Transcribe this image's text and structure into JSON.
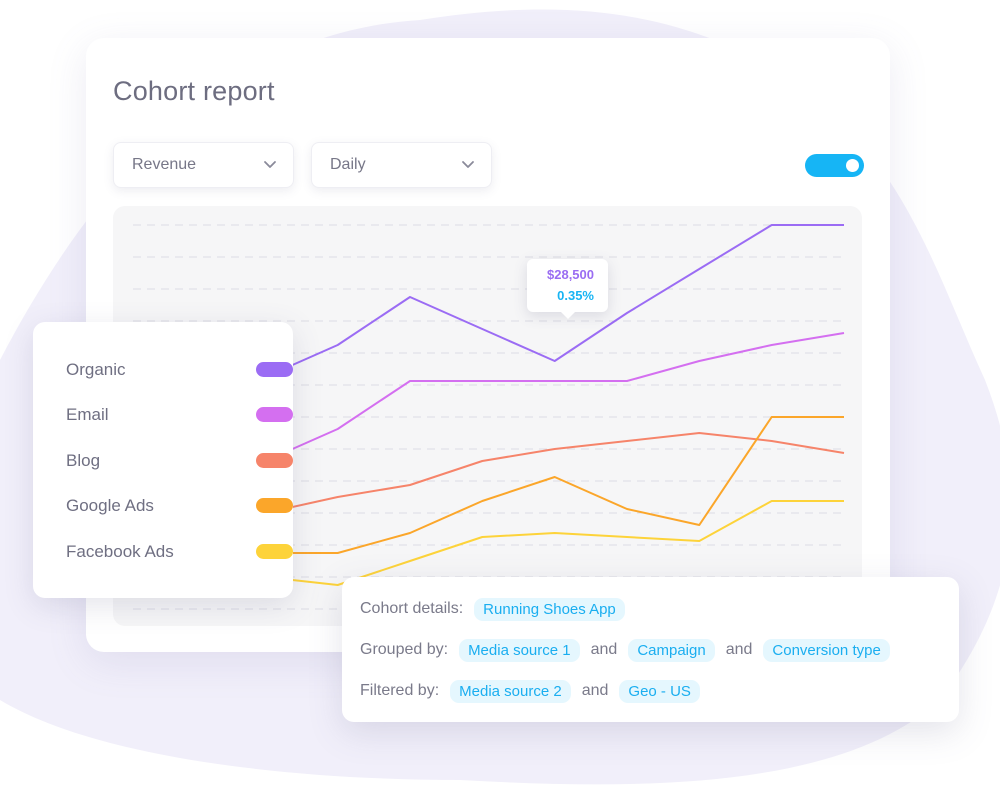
{
  "report": {
    "title": "Cohort report"
  },
  "filters": {
    "metric": {
      "label": "Revenue",
      "icon": "chevron-down-icon"
    },
    "period": {
      "label": "Daily",
      "icon": "chevron-down-icon"
    }
  },
  "toggle": {
    "state": "on",
    "color": "#16b5f5"
  },
  "legend": [
    {
      "label": "Organic",
      "color": "#9b6cf4"
    },
    {
      "label": "Email",
      "color": "#d46ff0"
    },
    {
      "label": "Blog",
      "color": "#f6846a"
    },
    {
      "label": "Google Ads",
      "color": "#fba62a"
    },
    {
      "label": "Facebook Ads",
      "color": "#fdd33a"
    }
  ],
  "tooltip": {
    "value": "$28,500",
    "percent": "0.35%"
  },
  "details": {
    "cohort_label": "Cohort details:",
    "cohort_tags": [
      "Running Shoes App"
    ],
    "grouped_label": "Grouped by:",
    "grouped_tags": [
      "Media source 1",
      "Campaign",
      "Conversion type"
    ],
    "filtered_label": "Filtered by:",
    "filtered_tags": [
      "Media source 2",
      "Geo  - US"
    ],
    "joiner": "and"
  },
  "chart_data": {
    "type": "line",
    "x": [
      0,
      1,
      2,
      3,
      4,
      5,
      6,
      7,
      8,
      9
    ],
    "ylim": [
      0,
      100
    ],
    "grid": true,
    "series": [
      {
        "name": "Organic",
        "color": "#9b6cf4",
        "values": [
          58,
          61,
          69,
          81,
          73,
          65,
          77,
          88,
          99,
          99
        ]
      },
      {
        "name": "Email",
        "color": "#d46ff0",
        "values": [
          42,
          40,
          48,
          60,
          60,
          60,
          60,
          65,
          69,
          72
        ]
      },
      {
        "name": "Blog",
        "color": "#f6846a",
        "values": [
          27,
          27,
          31,
          34,
          40,
          43,
          45,
          47,
          45,
          42
        ]
      },
      {
        "name": "Google Ads",
        "color": "#fba62a",
        "values": [
          17,
          17,
          17,
          22,
          30,
          36,
          28,
          24,
          51,
          51
        ]
      },
      {
        "name": "Facebook Ads",
        "color": "#fdd33a",
        "values": [
          10,
          11,
          9,
          15,
          21,
          22,
          21,
          20,
          30,
          30
        ]
      }
    ]
  }
}
